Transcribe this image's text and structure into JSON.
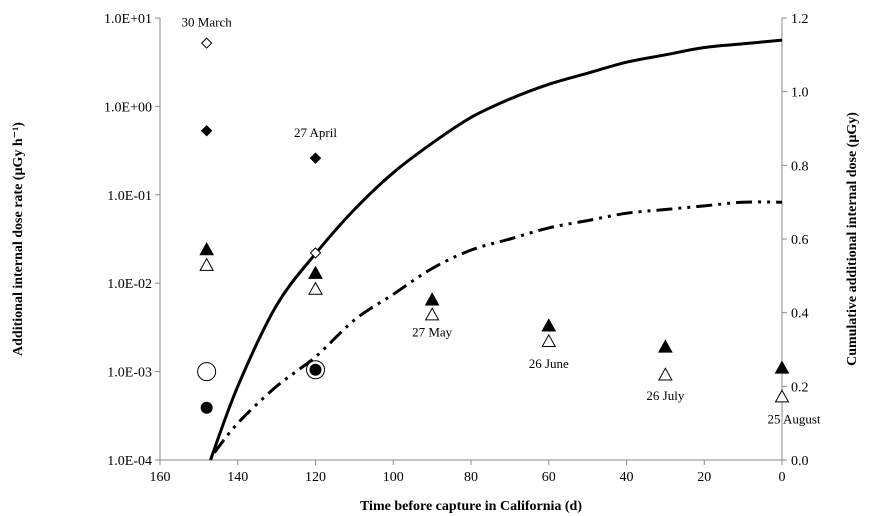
{
  "chart_data": {
    "type": "scatter",
    "title": "",
    "xlabel": "Time before capture in California (d)",
    "ylabel_left": "Additional internal dose rate  (µGy h⁻¹)",
    "ylabel_right": "Cumulative additional internal dose  (µGy)",
    "x": {
      "range": [
        160,
        0
      ],
      "ticks": [
        160,
        140,
        120,
        100,
        80,
        60,
        40,
        20,
        0
      ],
      "tick_labels": [
        "160",
        "140",
        "120",
        "100",
        "80",
        "60",
        "40",
        "20",
        "0"
      ]
    },
    "y_left": {
      "scale": "log",
      "range": [
        0.0001,
        10
      ],
      "ticks": [
        0.0001,
        0.001,
        0.01,
        0.1,
        1,
        10
      ],
      "tick_labels": [
        "1.0E-04",
        "1.0E-03",
        "1.0E-02",
        "1.0E-01",
        "1.0E+00",
        "1.0E+01"
      ]
    },
    "y_right": {
      "scale": "linear",
      "range": [
        0,
        1.2
      ],
      "ticks": [
        0,
        0.2,
        0.4,
        0.6,
        0.8,
        1.0,
        1.2
      ],
      "tick_labels": [
        "0.0",
        "0.2",
        "0.4",
        "0.6",
        "0.8",
        "1.0",
        "1.2"
      ]
    },
    "series": [
      {
        "marker": "diamond-open",
        "axis": "left",
        "points": [
          [
            148,
            5.2
          ],
          [
            120,
            0.022
          ]
        ]
      },
      {
        "marker": "diamond-filled",
        "axis": "left",
        "points": [
          [
            148,
            0.53
          ],
          [
            120,
            0.26
          ]
        ]
      },
      {
        "marker": "triangle-filled",
        "axis": "left",
        "points": [
          [
            148,
            0.024
          ],
          [
            120,
            0.013
          ],
          [
            90,
            0.0065
          ],
          [
            60,
            0.0033
          ],
          [
            30,
            0.0019
          ],
          [
            0,
            0.0011
          ]
        ]
      },
      {
        "marker": "triangle-open",
        "axis": "left",
        "points": [
          [
            148,
            0.016
          ],
          [
            120,
            0.0086
          ],
          [
            90,
            0.0044
          ],
          [
            60,
            0.0022
          ],
          [
            30,
            0.00092
          ],
          [
            0,
            0.00052
          ]
        ]
      },
      {
        "marker": "circle-open",
        "axis": "left",
        "points": [
          [
            148,
            0.001
          ],
          [
            120,
            0.00105
          ]
        ]
      },
      {
        "marker": "circle-filled",
        "axis": "left",
        "points": [
          [
            148,
            0.00039
          ],
          [
            120,
            0.00105
          ]
        ]
      }
    ],
    "curves": [
      {
        "style": "solid",
        "axis": "right",
        "points": [
          [
            147,
            0
          ],
          [
            140,
            0.2
          ],
          [
            130,
            0.42
          ],
          [
            120,
            0.56
          ],
          [
            110,
            0.68
          ],
          [
            100,
            0.78
          ],
          [
            90,
            0.86
          ],
          [
            80,
            0.93
          ],
          [
            70,
            0.98
          ],
          [
            60,
            1.02
          ],
          [
            50,
            1.05
          ],
          [
            40,
            1.08
          ],
          [
            30,
            1.1
          ],
          [
            20,
            1.12
          ],
          [
            10,
            1.13
          ],
          [
            0,
            1.14
          ]
        ]
      },
      {
        "style": "dash-dot-dot",
        "axis": "right",
        "points": [
          [
            146,
            0.02
          ],
          [
            140,
            0.1
          ],
          [
            130,
            0.2
          ],
          [
            120,
            0.28
          ],
          [
            110,
            0.38
          ],
          [
            100,
            0.45
          ],
          [
            90,
            0.52
          ],
          [
            80,
            0.57
          ],
          [
            70,
            0.6
          ],
          [
            60,
            0.63
          ],
          [
            50,
            0.65
          ],
          [
            40,
            0.67
          ],
          [
            30,
            0.68
          ],
          [
            20,
            0.69
          ],
          [
            10,
            0.7
          ],
          [
            0,
            0.7
          ]
        ]
      }
    ],
    "annotations": [
      {
        "text": "30 March",
        "x": 148,
        "axis": "left",
        "y": 8.0
      },
      {
        "text": "27 April",
        "x": 120,
        "axis": "left",
        "y": 0.45
      },
      {
        "text": "27 May",
        "x": 90,
        "axis": "left",
        "y": 0.0025
      },
      {
        "text": "26 June",
        "x": 60,
        "axis": "left",
        "y": 0.0011
      },
      {
        "text": "26 July",
        "x": 30,
        "axis": "left",
        "y": 0.00048
      },
      {
        "text": "25 August",
        "x": 0,
        "axis": "left",
        "y": 0.00026
      }
    ],
    "grid": false,
    "legend": "none"
  }
}
